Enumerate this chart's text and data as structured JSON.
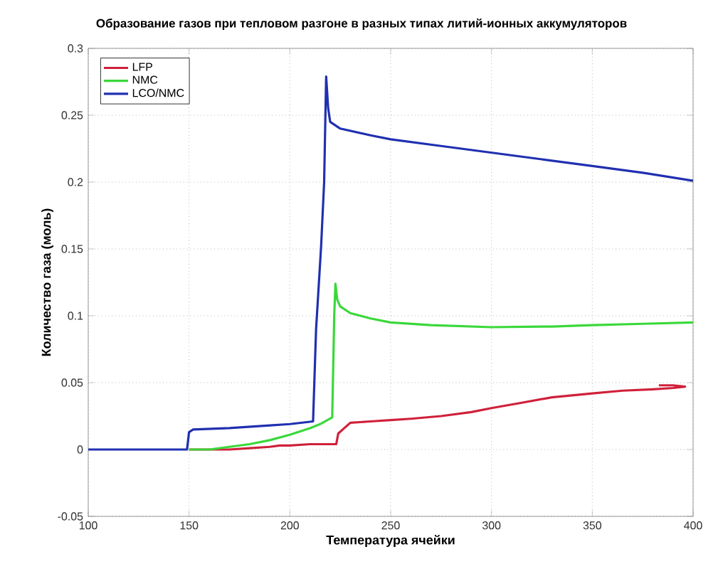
{
  "chart_data": {
    "type": "line",
    "title": "Образование газов при тепловом разгоне в разных типах литий-ионных аккумуляторов",
    "xlabel": "Температура ячейки",
    "ylabel": "Количество газа (моль)",
    "xlim": [
      100,
      400
    ],
    "ylim": [
      -0.05,
      0.3
    ],
    "xticks": [
      100,
      150,
      200,
      250,
      300,
      350,
      400
    ],
    "yticks": [
      -0.05,
      0,
      0.05,
      0.1,
      0.15,
      0.2,
      0.25,
      0.3
    ],
    "grid": true,
    "legend": "top left",
    "line_style": "solid",
    "marker": "none",
    "series": [
      {
        "name": "LFP",
        "color": "#d0203a",
        "x": [
          150,
          170,
          180,
          190,
          195,
          200,
          210,
          218,
          223,
          224,
          227,
          230,
          240,
          250,
          260,
          275,
          290,
          300,
          315,
          330,
          350,
          365,
          380,
          390,
          396,
          390,
          383
        ],
        "values": [
          0,
          0,
          0.001,
          0.002,
          0.003,
          0.003,
          0.004,
          0.004,
          0.004,
          0.012,
          0.016,
          0.02,
          0.021,
          0.022,
          0.023,
          0.025,
          0.028,
          0.031,
          0.035,
          0.039,
          0.042,
          0.044,
          0.045,
          0.046,
          0.047,
          0.048,
          0.048
        ]
      },
      {
        "name": "NMC",
        "color": "#3ad83a",
        "x": [
          150,
          160,
          170,
          180,
          190,
          200,
          210,
          215,
          221,
          222,
          222.6,
          223.5,
          225,
          230,
          240,
          250,
          270,
          300,
          330,
          350,
          375,
          400
        ],
        "values": [
          0,
          0,
          0.002,
          0.004,
          0.007,
          0.011,
          0.016,
          0.019,
          0.024,
          0.1,
          0.124,
          0.112,
          0.107,
          0.102,
          0.098,
          0.095,
          0.093,
          0.0915,
          0.092,
          0.093,
          0.094,
          0.095
        ]
      },
      {
        "name": "LCO/NMC",
        "color": "#2030b0",
        "x": [
          100,
          125,
          149,
          150,
          152,
          170,
          190,
          200,
          211.5,
          213,
          215.5,
          217,
          218,
          219,
          220,
          225,
          240,
          250,
          275,
          300,
          325,
          350,
          375,
          400
        ],
        "values": [
          0,
          0,
          0,
          0.013,
          0.015,
          0.016,
          0.018,
          0.019,
          0.021,
          0.09,
          0.152,
          0.2,
          0.279,
          0.255,
          0.245,
          0.24,
          0.235,
          0.232,
          0.227,
          0.222,
          0.217,
          0.212,
          0.207,
          0.201
        ]
      }
    ]
  }
}
